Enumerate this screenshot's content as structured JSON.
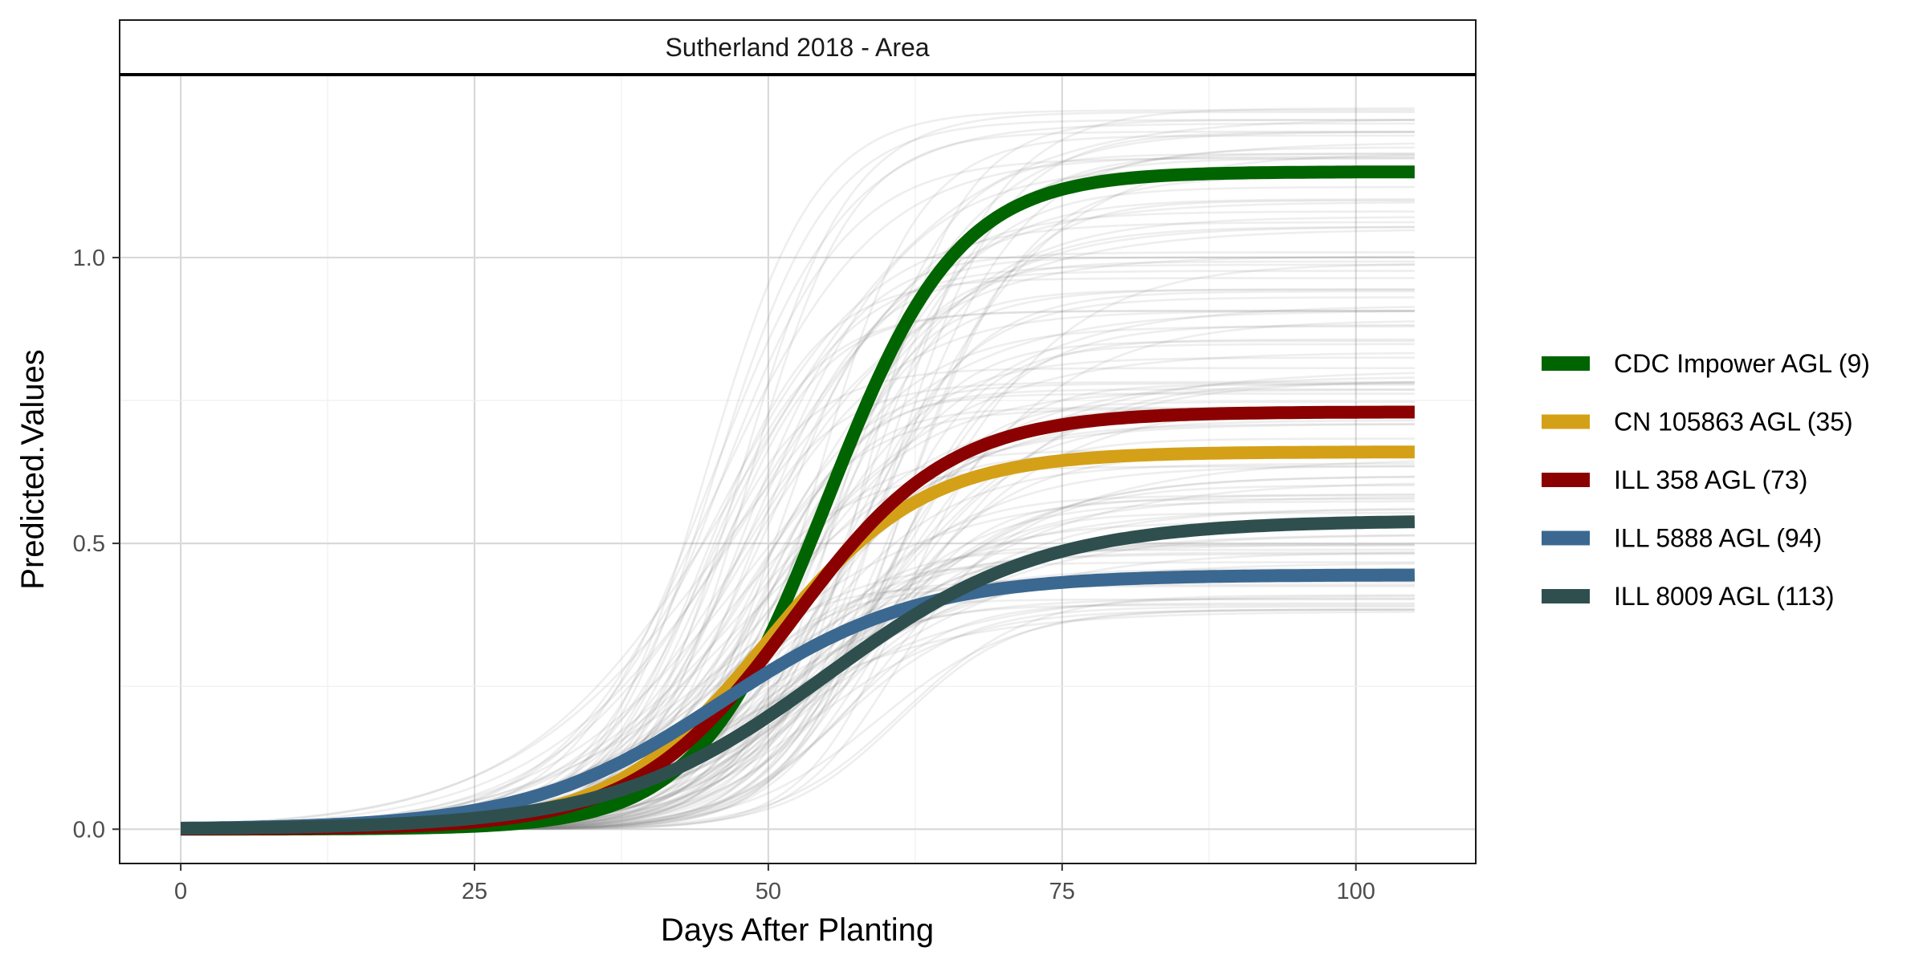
{
  "chart_data": {
    "type": "line",
    "panel_title": "Sutherland 2018 - Area",
    "xlabel": "Days After Planting",
    "ylabel": "Predicted.Values",
    "xlim": [
      -5.2,
      110.2
    ],
    "ylim": [
      -0.06,
      1.32
    ],
    "x_ticks": [
      0,
      25,
      50,
      75,
      100
    ],
    "x_tick_labels": [
      "0",
      "25",
      "50",
      "75",
      "100"
    ],
    "y_ticks": [
      0.0,
      0.5,
      1.0
    ],
    "y_tick_labels": [
      "0.0",
      "0.5",
      "1.0"
    ],
    "x_range": [
      0,
      105
    ],
    "grid": true,
    "legend_position": "right",
    "background_curves": {
      "color": "#7f7f7f",
      "count": 130,
      "asymptote_range": [
        0.38,
        1.27
      ],
      "midpoint_range": [
        44,
        62
      ],
      "rate_range": [
        0.1,
        0.25
      ]
    },
    "series": [
      {
        "name": "CDC Impower AGL (9)",
        "color": "#006400",
        "model": "logistic",
        "asymptote": 1.15,
        "midpoint": 55.0,
        "rate": 0.18
      },
      {
        "name": "CN 105863 AGL (35)",
        "color": "#D4A017",
        "model": "logistic",
        "asymptote": 0.66,
        "midpoint": 50.0,
        "rate": 0.15
      },
      {
        "name": "ILL 358 AGL (73)",
        "color": "#8B0000",
        "model": "logistic",
        "asymptote": 0.73,
        "midpoint": 52.0,
        "rate": 0.15
      },
      {
        "name": "ILL 5888 AGL (94)",
        "color": "#3A6890",
        "model": "logistic",
        "asymptote": 0.445,
        "midpoint": 46.0,
        "rate": 0.12
      },
      {
        "name": "ILL 8009 AGL (113)",
        "color": "#2F4F4F",
        "model": "logistic",
        "asymptote": 0.54,
        "midpoint": 55.0,
        "rate": 0.11
      }
    ]
  }
}
